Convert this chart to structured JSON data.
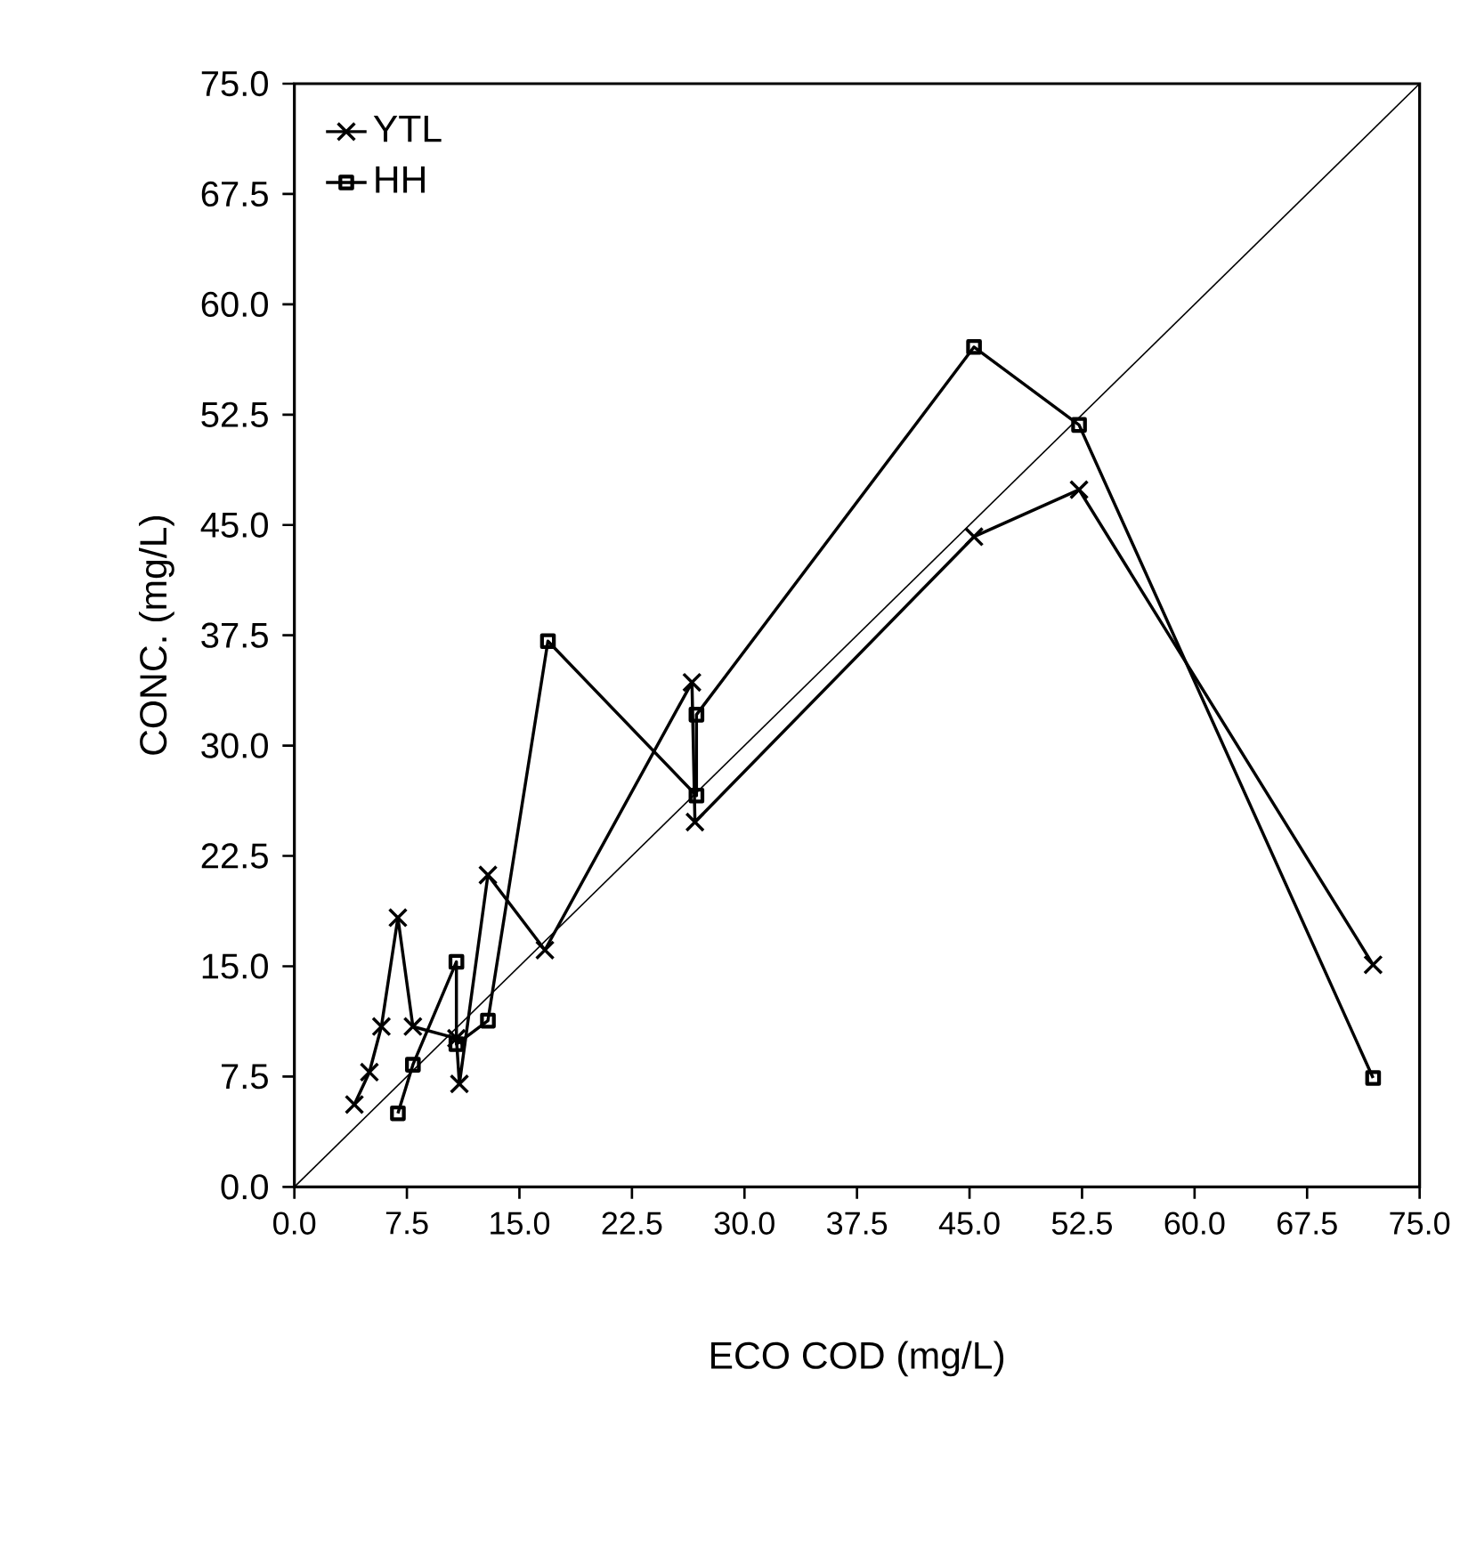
{
  "chart_data": {
    "type": "line",
    "xlabel": "ECO COD (mg/L)",
    "ylabel": "CONC. (mg/L)",
    "xlim": [
      0,
      75
    ],
    "ylim": [
      0,
      75
    ],
    "xticks": [
      {
        "value": 0,
        "label": "0.0"
      },
      7.5,
      {
        "value": 15,
        "label": "15.0"
      },
      22.5,
      {
        "value": 30,
        "label": "30.0"
      },
      37.5,
      {
        "value": 45,
        "label": "45.0"
      },
      52.5,
      {
        "value": 60,
        "label": "60.0"
      },
      67.5,
      {
        "value": 75,
        "label": "75.0"
      }
    ],
    "yticks": [
      {
        "value": 0,
        "label": "0.0"
      },
      7.5,
      {
        "value": 15,
        "label": "15.0"
      },
      22.5,
      {
        "value": 30,
        "label": "30.0"
      },
      37.5,
      {
        "value": 45,
        "label": "45.0"
      },
      52.5,
      {
        "value": 60,
        "label": "60.0"
      },
      67.5,
      {
        "value": 75,
        "label": "75.0"
      }
    ],
    "legend": "top left",
    "line_style": "solid",
    "series": [
      {
        "name": "YTL",
        "color": "#000000",
        "marker": "cross",
        "x": [
          4.0,
          5.0,
          5.8,
          6.9,
          7.9,
          10.8,
          11.0,
          12.9,
          16.7,
          26.5,
          26.7,
          45.3,
          52.3,
          71.9
        ],
        "values": [
          5.6,
          7.8,
          10.9,
          18.3,
          10.9,
          10.1,
          7.0,
          21.2,
          16.1,
          34.3,
          24.8,
          44.2,
          47.4,
          15.1
        ]
      },
      {
        "name": "HH",
        "color": "#000000",
        "marker": "square",
        "x": [
          6.9,
          7.9,
          10.8,
          10.8,
          12.9,
          16.9,
          26.8,
          26.8,
          45.3,
          52.3,
          71.9
        ],
        "values": [
          5.0,
          8.3,
          15.3,
          9.7,
          11.3,
          37.1,
          26.6,
          32.1,
          57.1,
          51.8,
          7.4
        ]
      },
      {
        "color": "#000000",
        "marker": "none",
        "x": [
          0,
          75
        ],
        "values": [
          0,
          75
        ]
      }
    ]
  }
}
